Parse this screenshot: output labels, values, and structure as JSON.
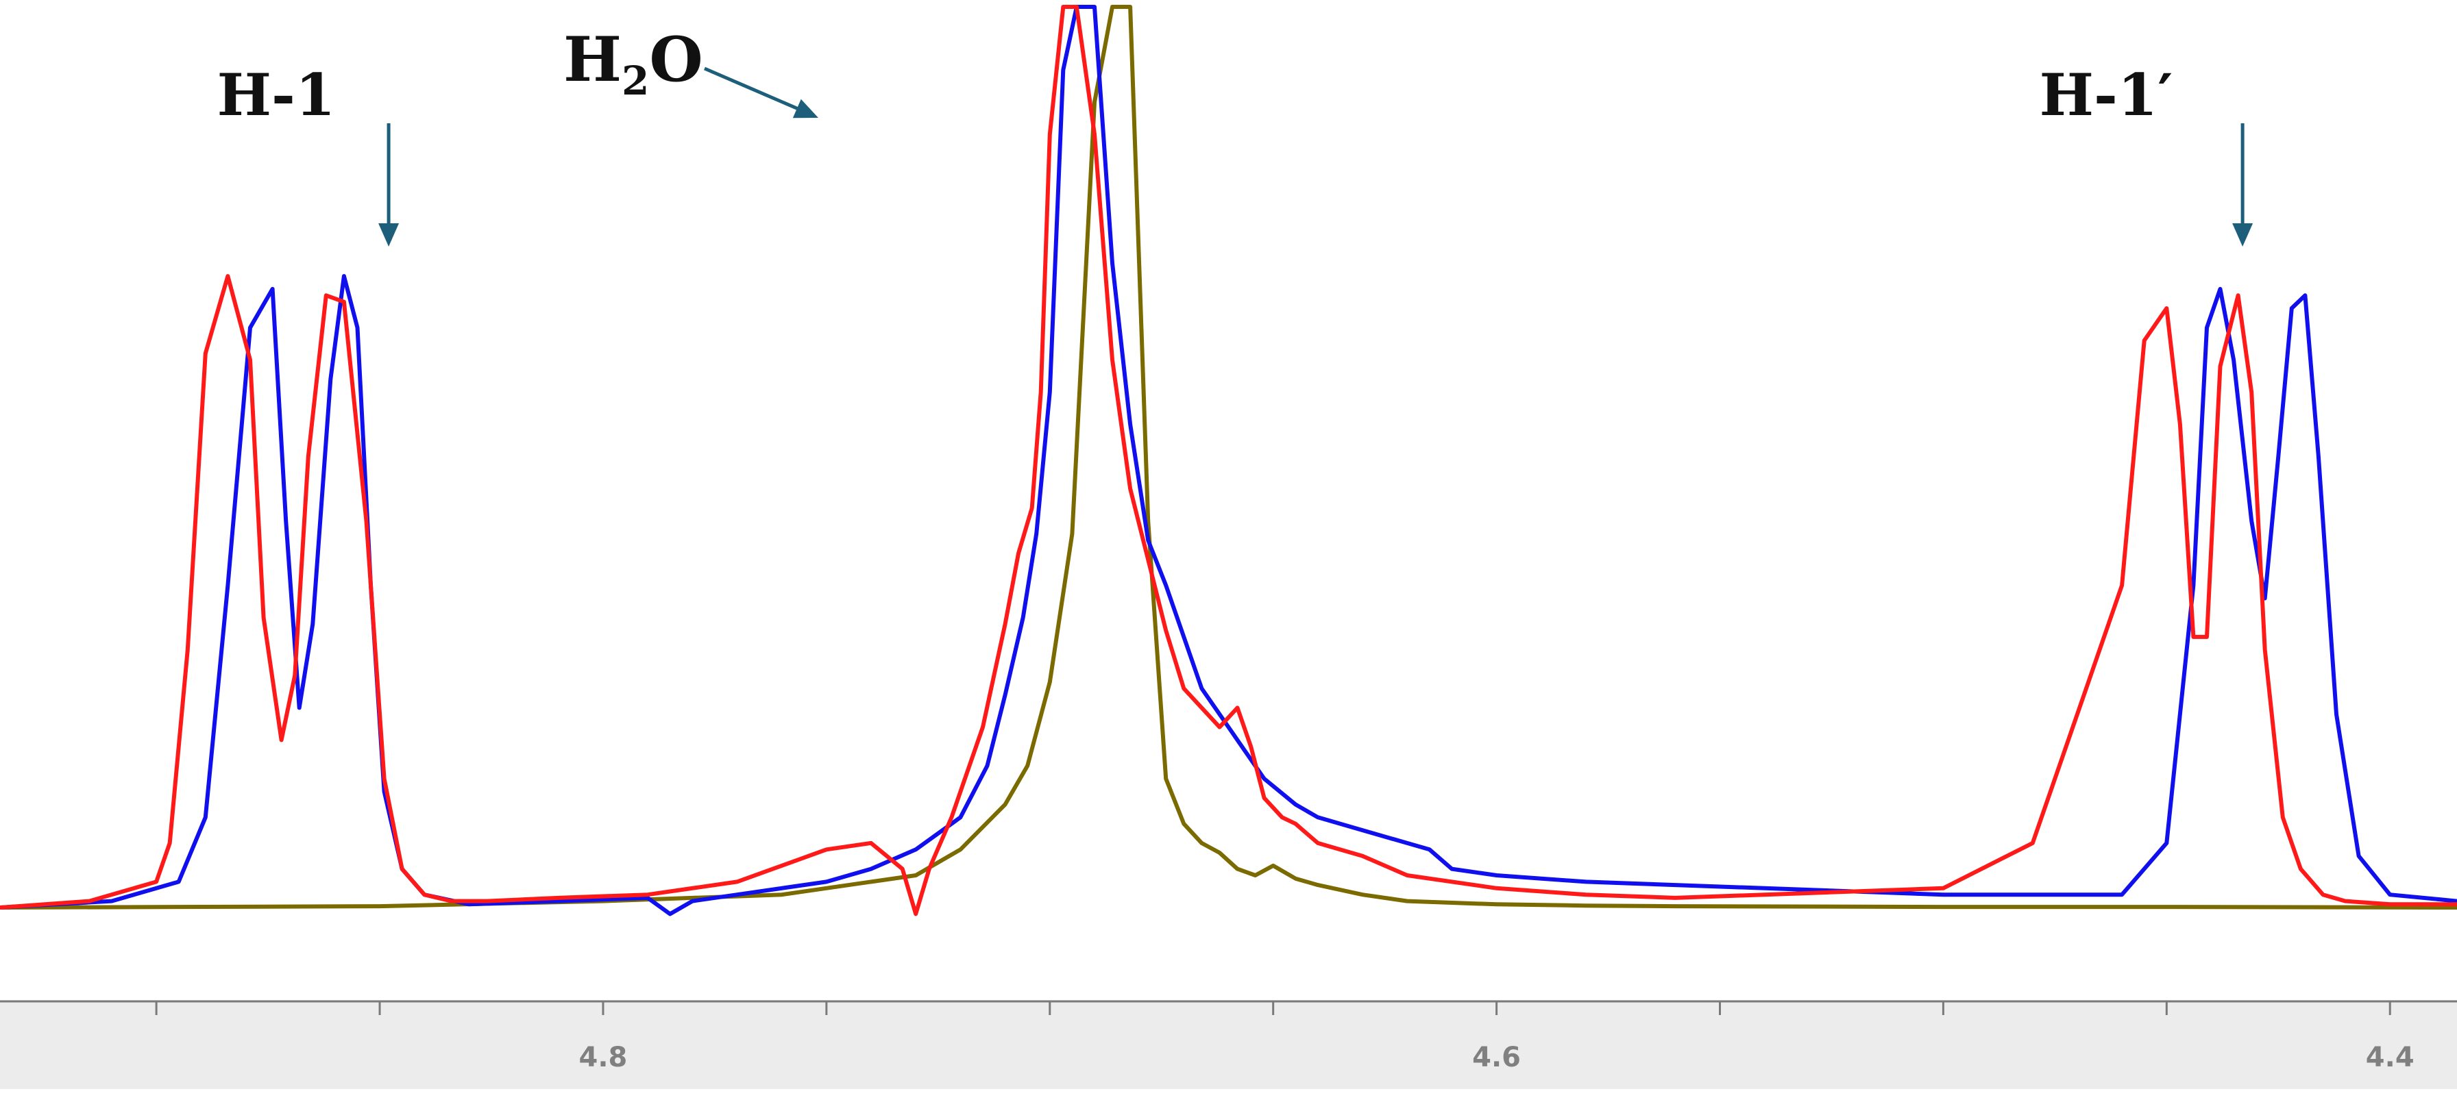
{
  "chart_data": {
    "type": "line",
    "title": "",
    "xlabel": "",
    "ylabel": "",
    "x_axis_reversed": true,
    "xlim": [
      4.935,
      4.385
    ],
    "ylim": [
      0,
      1.4
    ],
    "grid": false,
    "legend": "none",
    "x_ticks": [
      {
        "value": 4.8,
        "label": "4.8"
      },
      {
        "value": 4.6,
        "label": "4.6"
      },
      {
        "value": 4.4,
        "label": "4.4"
      }
    ],
    "minor_tick_step": 0.05,
    "series": [
      {
        "color": "#ff1a1a",
        "x": [
          4.935,
          4.915,
          4.9,
          4.897,
          4.893,
          4.889,
          4.884,
          4.879,
          4.876,
          4.872,
          4.869,
          4.866,
          4.862,
          4.858,
          4.853,
          4.849,
          4.845,
          4.84,
          4.834,
          4.826,
          4.81,
          4.79,
          4.77,
          4.75,
          4.74,
          4.733,
          4.73,
          4.727,
          4.722,
          4.715,
          4.71,
          4.707,
          4.704,
          4.702,
          4.7,
          4.697,
          4.694,
          4.69,
          4.686,
          4.682,
          4.678,
          4.674,
          4.67,
          4.666,
          4.662,
          4.658,
          4.655,
          4.652,
          4.648,
          4.645,
          4.64,
          4.63,
          4.62,
          4.6,
          4.58,
          4.56,
          4.54,
          4.52,
          4.5,
          4.48,
          4.46,
          4.455,
          4.45,
          4.447,
          4.444,
          4.441,
          4.438,
          4.434,
          4.431,
          4.428,
          4.424,
          4.42,
          4.415,
          4.41,
          4.4,
          4.385
        ],
        "y": [
          0,
          0.01,
          0.04,
          0.1,
          0.4,
          0.86,
          0.98,
          0.85,
          0.45,
          0.26,
          0.36,
          0.7,
          0.95,
          0.94,
          0.6,
          0.2,
          0.06,
          0.02,
          0.01,
          0.01,
          0.015,
          0.02,
          0.04,
          0.09,
          0.1,
          0.06,
          -0.01,
          0.06,
          0.14,
          0.28,
          0.44,
          0.55,
          0.62,
          0.8,
          1.2,
          1.5,
          1.6,
          1.2,
          0.85,
          0.65,
          0.54,
          0.43,
          0.34,
          0.31,
          0.28,
          0.31,
          0.25,
          0.17,
          0.14,
          0.13,
          0.1,
          0.08,
          0.05,
          0.03,
          0.02,
          0.015,
          0.02,
          0.025,
          0.03,
          0.1,
          0.5,
          0.88,
          0.93,
          0.75,
          0.42,
          0.42,
          0.84,
          0.95,
          0.8,
          0.4,
          0.14,
          0.06,
          0.02,
          0.01,
          0.005,
          0.005
        ]
      },
      {
        "color": "#1010ee",
        "x": [
          4.935,
          4.91,
          4.895,
          4.889,
          4.884,
          4.879,
          4.874,
          4.871,
          4.868,
          4.865,
          4.861,
          4.858,
          4.855,
          4.852,
          4.849,
          4.845,
          4.84,
          4.83,
          4.81,
          4.79,
          4.785,
          4.78,
          4.77,
          4.75,
          4.74,
          4.73,
          4.72,
          4.714,
          4.71,
          4.706,
          4.703,
          4.7,
          4.697,
          4.694,
          4.69,
          4.686,
          4.682,
          4.678,
          4.674,
          4.67,
          4.666,
          4.662,
          4.658,
          4.652,
          4.645,
          4.64,
          4.63,
          4.62,
          4.615,
          4.61,
          4.6,
          4.58,
          4.56,
          4.54,
          4.52,
          4.5,
          4.48,
          4.46,
          4.45,
          4.444,
          4.441,
          4.438,
          4.435,
          4.431,
          4.428,
          4.425,
          4.422,
          4.419,
          4.416,
          4.412,
          4.407,
          4.4,
          4.385
        ],
        "y": [
          0,
          0.01,
          0.04,
          0.14,
          0.5,
          0.9,
          0.96,
          0.6,
          0.31,
          0.44,
          0.82,
          0.98,
          0.9,
          0.5,
          0.18,
          0.06,
          0.02,
          0.005,
          0.01,
          0.015,
          -0.01,
          0.01,
          0.02,
          0.04,
          0.06,
          0.09,
          0.14,
          0.22,
          0.33,
          0.45,
          0.58,
          0.8,
          1.3,
          1.6,
          1.4,
          1.0,
          0.75,
          0.57,
          0.5,
          0.42,
          0.34,
          0.3,
          0.26,
          0.2,
          0.16,
          0.14,
          0.12,
          0.1,
          0.09,
          0.06,
          0.05,
          0.04,
          0.035,
          0.03,
          0.025,
          0.02,
          0.02,
          0.02,
          0.1,
          0.5,
          0.9,
          0.96,
          0.85,
          0.6,
          0.48,
          0.7,
          0.93,
          0.95,
          0.7,
          0.3,
          0.08,
          0.02,
          0.01
        ]
      },
      {
        "color": "#7a6a00",
        "x": [
          4.935,
          4.85,
          4.8,
          4.76,
          4.73,
          4.72,
          4.71,
          4.705,
          4.7,
          4.695,
          4.69,
          4.686,
          4.682,
          4.678,
          4.674,
          4.67,
          4.666,
          4.662,
          4.658,
          4.654,
          4.65,
          4.645,
          4.64,
          4.63,
          4.62,
          4.6,
          4.58,
          4.56,
          4.5,
          4.45,
          4.385
        ],
        "y": [
          0,
          0.002,
          0.01,
          0.02,
          0.05,
          0.09,
          0.16,
          0.22,
          0.35,
          0.58,
          1.25,
          1.6,
          1.5,
          0.6,
          0.2,
          0.13,
          0.1,
          0.085,
          0.06,
          0.05,
          0.065,
          0.045,
          0.035,
          0.02,
          0.01,
          0.005,
          0.003,
          0.002,
          0.001,
          0.001,
          0
        ]
      }
    ],
    "annotations": [
      {
        "text": "H-1",
        "arrow_x": 4.848
      },
      {
        "text": "H",
        "subscript": "2",
        "after": "O",
        "arrow_x": 4.704
      },
      {
        "text": "H-1′",
        "arrow_x": 4.433
      }
    ]
  }
}
